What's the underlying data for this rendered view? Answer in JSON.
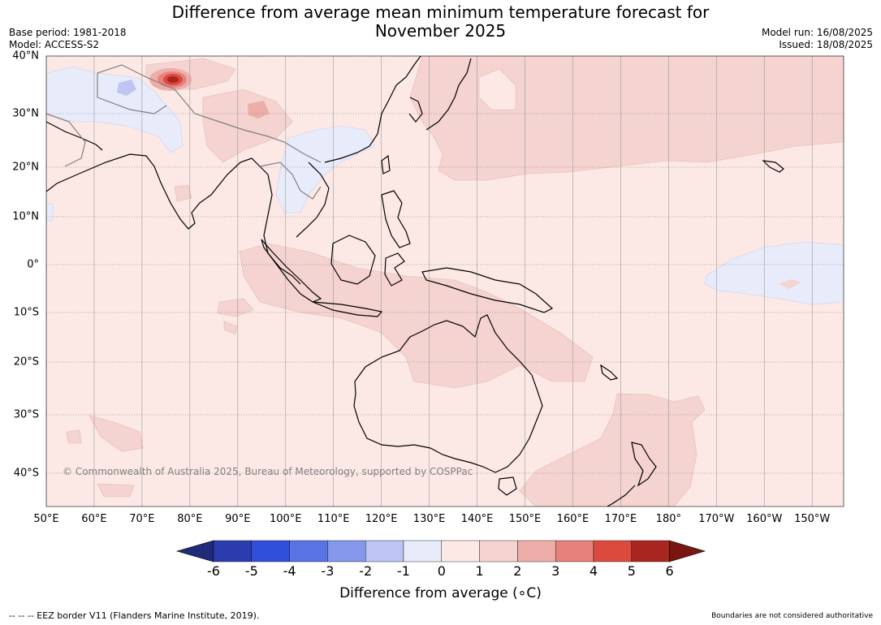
{
  "header": {
    "title_line1": "Difference from average mean minimum temperature forecast for",
    "title_line2": "November 2025",
    "base_period": "Base period: 1981-2018",
    "model": "Model: ACCESS-S2",
    "model_run": "Model run: 16/08/2025",
    "issued": "Issued: 18/08/2025"
  },
  "map": {
    "lon_ticks": [
      "50°E",
      "60°E",
      "70°E",
      "80°E",
      "90°E",
      "100°E",
      "110°E",
      "120°E",
      "130°E",
      "140°E",
      "150°E",
      "160°E",
      "170°E",
      "180°",
      "170°W",
      "160°W",
      "150°W"
    ],
    "lat_ticks": [
      "40°N",
      "30°N",
      "20°N",
      "10°N",
      "0°",
      "10°S",
      "20°S",
      "30°S",
      "40°S"
    ],
    "copyright": "© Commonwealth of Australia 2025, Bureau of Meteorology, supported by COSPPac"
  },
  "colorbar": {
    "ticks": [
      "-6",
      "-5",
      "-4",
      "-3",
      "-2",
      "-1",
      "0",
      "1",
      "2",
      "3",
      "4",
      "5",
      "6"
    ],
    "label": "Difference from average (∘C)",
    "colors": [
      "#1f2a78",
      "#2a3cae",
      "#3050dc",
      "#5a73e4",
      "#8597ea",
      "#bcc5f3",
      "#e8ebfa",
      "#fce9e6",
      "#f4d3d0",
      "#edaeaa",
      "#e6827b",
      "#dc4a3e",
      "#a9251f",
      "#7a1612"
    ]
  },
  "footer": {
    "eez": "--  --  -- EEZ border V11 (Flanders Marine Institute, 2019).",
    "boundaries": "Boundaries are not considered authoritative"
  }
}
